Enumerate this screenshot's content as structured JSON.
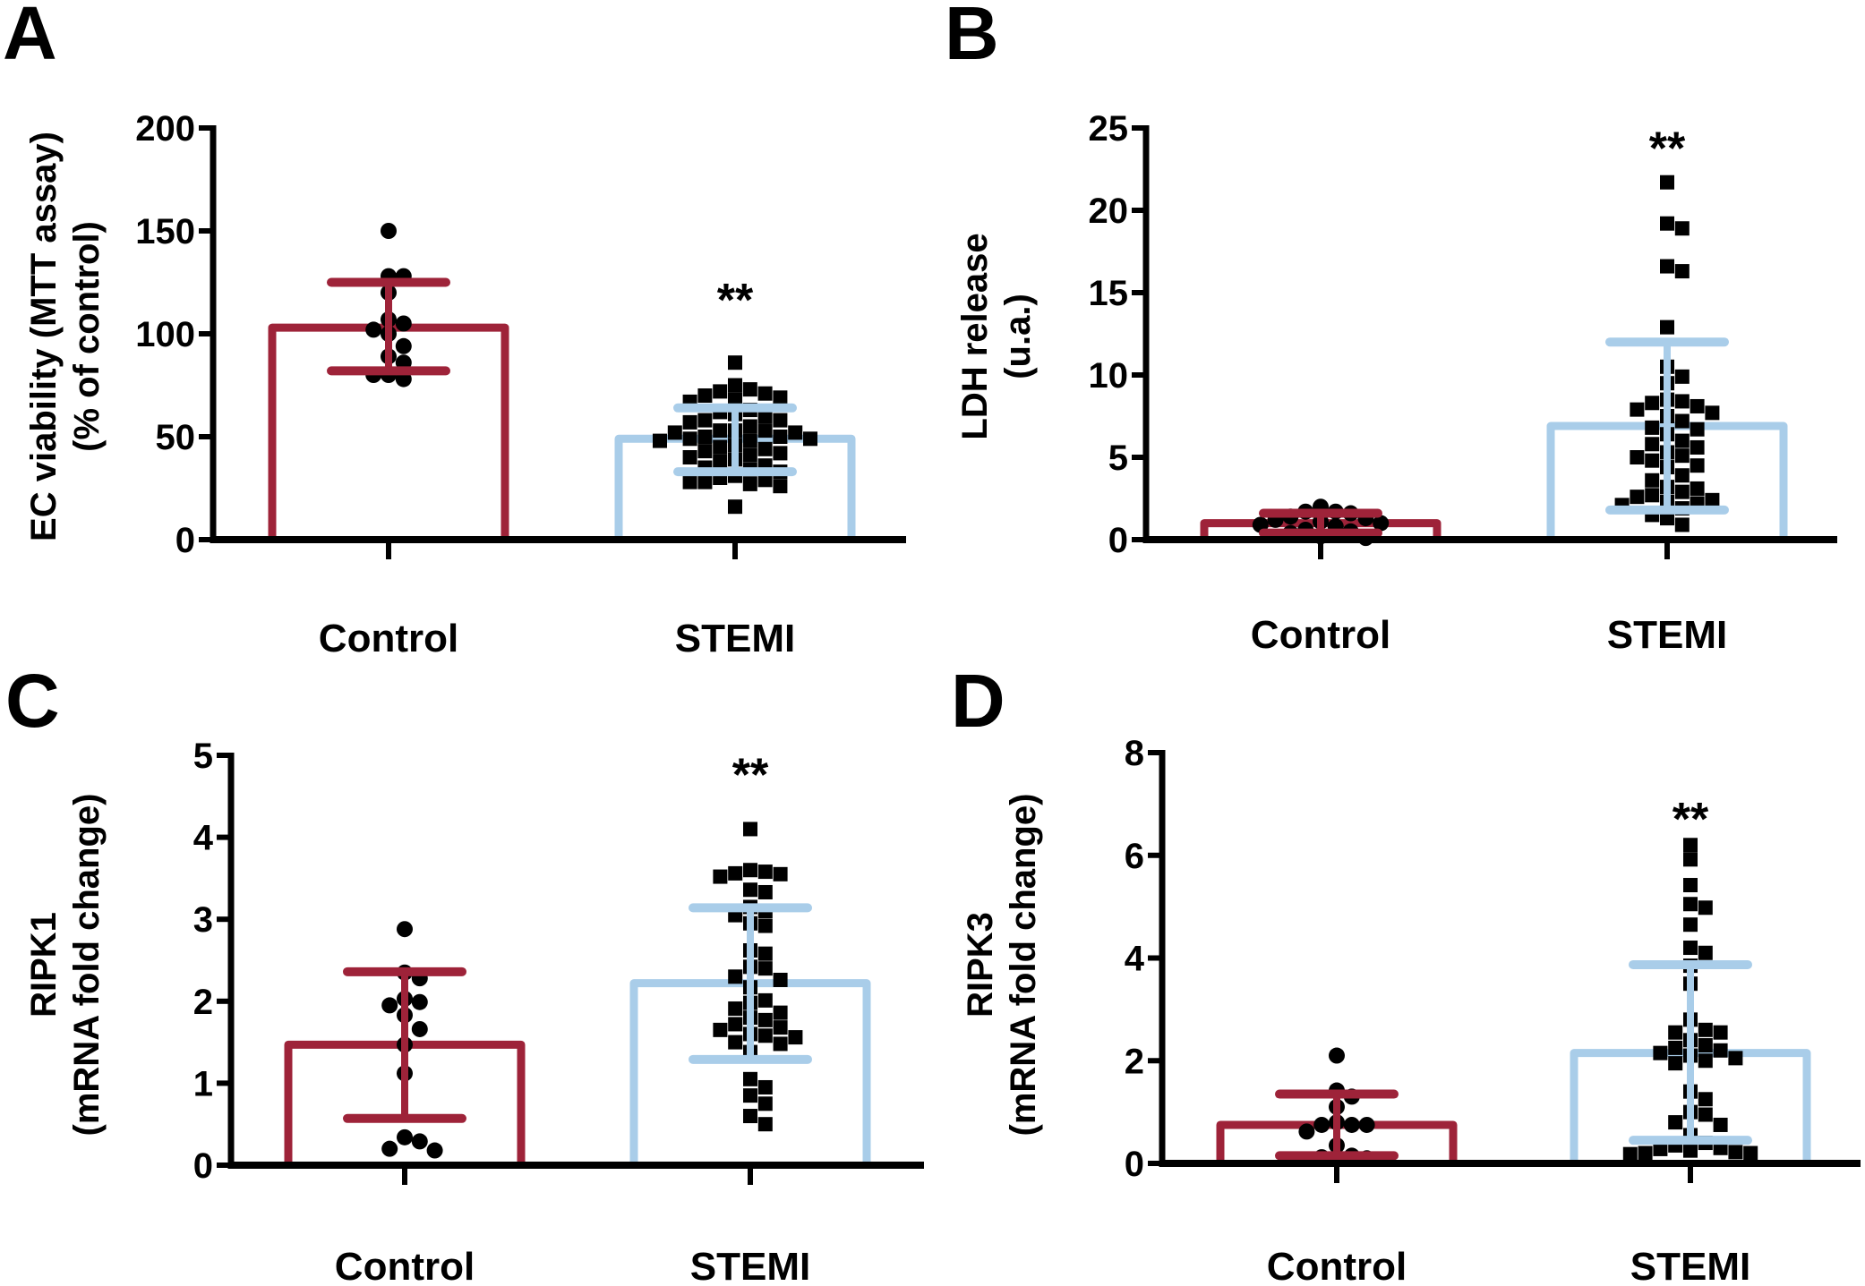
{
  "figure": {
    "colors": {
      "control": "#9e2339",
      "stemi": "#a9cde9",
      "points": "#000000",
      "axis": "#000000"
    }
  },
  "chart_data": [
    {
      "panel": "A",
      "type": "bar",
      "title": "",
      "xlabel": "",
      "ylabel_lines": [
        "EC viability (MTT assay)",
        "(% of control)"
      ],
      "categories": [
        "Control",
        "STEMI"
      ],
      "ylim": [
        0,
        200
      ],
      "yticks": [
        0,
        50,
        100,
        150,
        200
      ],
      "ytick_labels": [
        "0",
        "50",
        "100",
        "150",
        "200"
      ],
      "significance": {
        "category": "STEMI",
        "label": "**",
        "y": 120
      },
      "series": [
        {
          "name": "Control",
          "mean": 103,
          "sd_low": 82,
          "sd_high": 125,
          "marker": "circle",
          "points": [
            150,
            128,
            128,
            120,
            107,
            105,
            102,
            100,
            94,
            89,
            86,
            80,
            78,
            80
          ]
        },
        {
          "name": "STEMI",
          "mean": 49,
          "sd_low": 33,
          "sd_high": 64,
          "marker": "square",
          "points": [
            86,
            75,
            73,
            72,
            71,
            70,
            69,
            68,
            67,
            63,
            62,
            61,
            60,
            58,
            58,
            57,
            55,
            53,
            53,
            53,
            52,
            52,
            50,
            50,
            49,
            49,
            48,
            48,
            46,
            45,
            44,
            43,
            42,
            41,
            40,
            39,
            38,
            36,
            35,
            34,
            33,
            31,
            30,
            29,
            28,
            28,
            27,
            26,
            16
          ]
        }
      ]
    },
    {
      "panel": "B",
      "type": "bar",
      "title": "",
      "xlabel": "",
      "ylabel_lines": [
        "LDH release",
        "(u.a.)"
      ],
      "categories": [
        "Control",
        "STEMI"
      ],
      "ylim": [
        0,
        25
      ],
      "yticks": [
        0,
        5,
        10,
        15,
        20,
        25
      ],
      "ytick_labels": [
        "0",
        "5",
        "10",
        "15",
        "20",
        "25"
      ],
      "significance": {
        "category": "STEMI",
        "label": "**",
        "y": 24.2
      },
      "series": [
        {
          "name": "Control",
          "mean": 1.0,
          "sd_low": 0.4,
          "sd_high": 1.6,
          "marker": "circle",
          "points": [
            2.0,
            1.7,
            1.7,
            1.6,
            1.4,
            1.3,
            1.2,
            1.1,
            1.0,
            0.9,
            0.8,
            0.6,
            0.5,
            0.4,
            0.2,
            0.1
          ]
        },
        {
          "name": "STEMI",
          "mean": 6.9,
          "sd_low": 1.8,
          "sd_high": 12.0,
          "marker": "square",
          "points": [
            21.7,
            19.2,
            18.9,
            16.6,
            16.3,
            12.9,
            10.5,
            9.9,
            9.5,
            8.5,
            8.4,
            8.3,
            8.1,
            7.9,
            7.7,
            7.5,
            7.2,
            6.8,
            6.7,
            6.4,
            6.0,
            5.8,
            5.6,
            5.3,
            5.1,
            5.0,
            4.8,
            4.5,
            4.4,
            3.9,
            3.6,
            3.2,
            3.1,
            2.9,
            2.7,
            2.6,
            2.4,
            2.3,
            2.2,
            2.1,
            1.9,
            1.5,
            1.3,
            0.9
          ]
        }
      ]
    },
    {
      "panel": "C",
      "type": "bar",
      "title": "",
      "xlabel": "",
      "ylabel_lines": [
        "RIPK1",
        "(mRNA fold change)"
      ],
      "categories": [
        "Control",
        "STEMI"
      ],
      "ylim": [
        0,
        5
      ],
      "yticks": [
        0,
        1,
        2,
        3,
        4,
        5
      ],
      "ytick_labels": [
        "0",
        "1",
        "2",
        "3",
        "4",
        "5"
      ],
      "significance": {
        "category": "STEMI",
        "label": "**",
        "y": 4.85
      },
      "series": [
        {
          "name": "Control",
          "mean": 1.47,
          "sd_low": 0.57,
          "sd_high": 2.36,
          "marker": "circle",
          "points": [
            2.88,
            2.35,
            2.28,
            2.03,
            1.99,
            1.95,
            1.83,
            1.66,
            1.47,
            1.12,
            0.34,
            0.29,
            0.2,
            0.18
          ]
        },
        {
          "name": "STEMI",
          "mean": 2.22,
          "sd_low": 1.29,
          "sd_high": 3.14,
          "marker": "square",
          "points": [
            4.1,
            3.6,
            3.58,
            3.56,
            3.55,
            3.52,
            3.36,
            3.33,
            3.15,
            3.1,
            3.05,
            2.95,
            2.92,
            2.62,
            2.58,
            2.42,
            2.4,
            2.3,
            2.26,
            2.17,
            2.01,
            1.98,
            1.91,
            1.86,
            1.8,
            1.77,
            1.72,
            1.68,
            1.65,
            1.6,
            1.58,
            1.56,
            1.5,
            1.48,
            1.38,
            1.05,
            0.95,
            0.85,
            0.75,
            0.6,
            0.5
          ]
        }
      ]
    },
    {
      "panel": "D",
      "type": "bar",
      "title": "",
      "xlabel": "",
      "ylabel_lines": [
        "RIPK3",
        "(mRNA fold change)"
      ],
      "categories": [
        "Control",
        "STEMI"
      ],
      "ylim": [
        0,
        8
      ],
      "yticks": [
        0,
        2,
        4,
        6,
        8
      ],
      "ytick_labels": [
        "0",
        "2",
        "4",
        "6",
        "8"
      ],
      "significance": {
        "category": "STEMI",
        "label": "**",
        "y": 6.85
      },
      "series": [
        {
          "name": "Control",
          "mean": 0.75,
          "sd_low": 0.15,
          "sd_high": 1.35,
          "marker": "circle",
          "points": [
            2.1,
            1.42,
            1.3,
            1.1,
            0.8,
            0.75,
            0.75,
            0.75,
            0.62,
            0.35,
            0.15,
            0.12,
            0.1
          ]
        },
        {
          "name": "STEMI",
          "mean": 2.15,
          "sd_low": 0.45,
          "sd_high": 3.87,
          "marker": "square",
          "points": [
            6.2,
            5.92,
            5.42,
            5.05,
            4.98,
            4.65,
            4.2,
            4.1,
            3.85,
            3.5,
            2.8,
            2.6,
            2.55,
            2.55,
            2.4,
            2.3,
            2.25,
            2.2,
            2.15,
            2.1,
            2.05,
            2.0,
            1.95,
            1.4,
            1.25,
            1.0,
            0.95,
            0.8,
            0.75,
            0.55,
            0.4,
            0.35,
            0.3,
            0.28,
            0.25,
            0.22,
            0.2,
            0.2,
            0.18
          ]
        }
      ]
    }
  ]
}
